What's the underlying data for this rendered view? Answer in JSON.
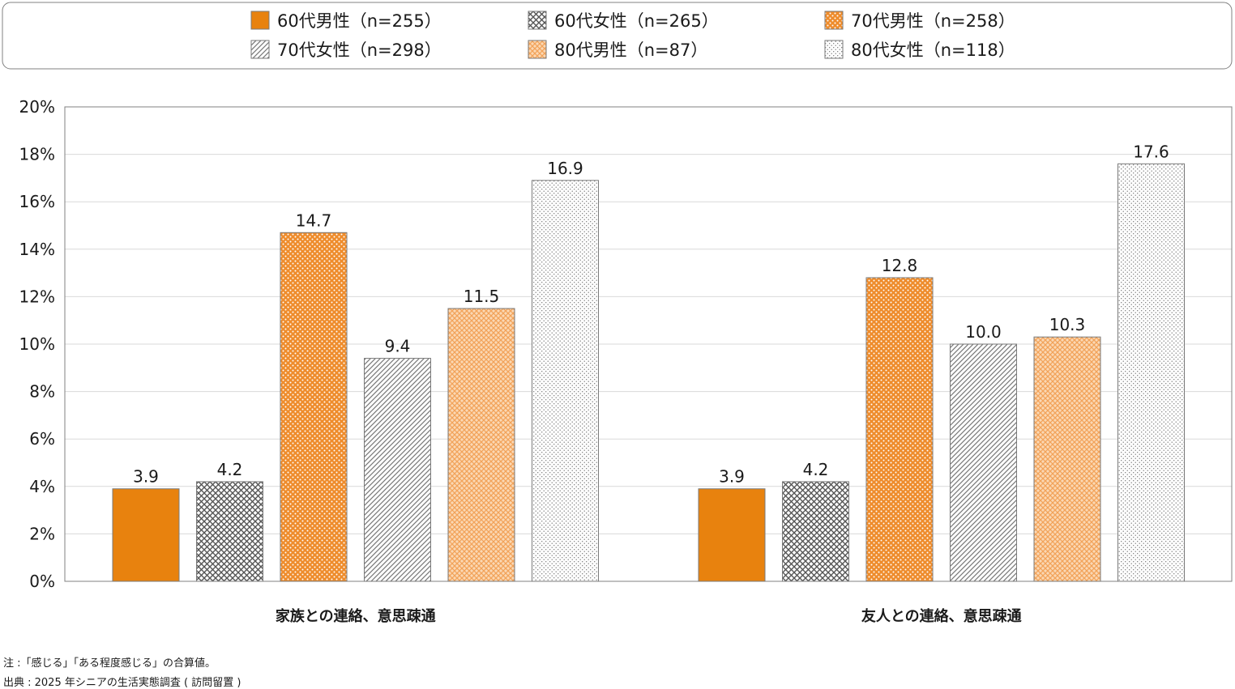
{
  "chart_data": {
    "type": "bar",
    "categories": [
      "家族との連絡、意思疎通",
      "友人との連絡、意思疎通"
    ],
    "series": [
      {
        "name": "60代男性（n=255）",
        "values": [
          3.9,
          3.9
        ],
        "labels": [
          "3.9",
          "3.9"
        ],
        "pattern": "solid",
        "color": "#e8820e"
      },
      {
        "name": "60代女性（n=265）",
        "values": [
          4.2,
          4.2
        ],
        "labels": [
          "4.2",
          "4.2"
        ],
        "pattern": "crosshatch",
        "color": "#555555"
      },
      {
        "name": "70代男性（n=258）",
        "values": [
          14.7,
          12.8
        ],
        "labels": [
          "14.7",
          "12.8"
        ],
        "pattern": "dots-on-orange",
        "color": "#ee8c2c"
      },
      {
        "name": "70代女性（n=298）",
        "values": [
          9.4,
          10.0
        ],
        "labels": [
          "9.4",
          "10.0"
        ],
        "pattern": "diagonal",
        "color": "#888888"
      },
      {
        "name": "80代男性（n=87）",
        "values": [
          11.5,
          10.3
        ],
        "labels": [
          "11.5",
          "10.3"
        ],
        "pattern": "light-orange-hatch",
        "color": "#f4b77a"
      },
      {
        "name": "80代女性（n=118）",
        "values": [
          16.9,
          17.6
        ],
        "labels": [
          "16.9",
          "17.6"
        ],
        "pattern": "fine-dots",
        "color": "#999999"
      }
    ],
    "ylim": [
      0,
      20
    ],
    "yticks": [
      "0%",
      "2%",
      "4%",
      "6%",
      "8%",
      "10%",
      "12%",
      "14%",
      "16%",
      "18%",
      "20%"
    ],
    "grid": true,
    "legend_position": "top"
  },
  "notes": {
    "note": "注 :「感じる」「ある程度感じる」の合算値。",
    "source": "出典 : 2025 年シニアの生活実態調査 ( 訪問留置 )"
  }
}
